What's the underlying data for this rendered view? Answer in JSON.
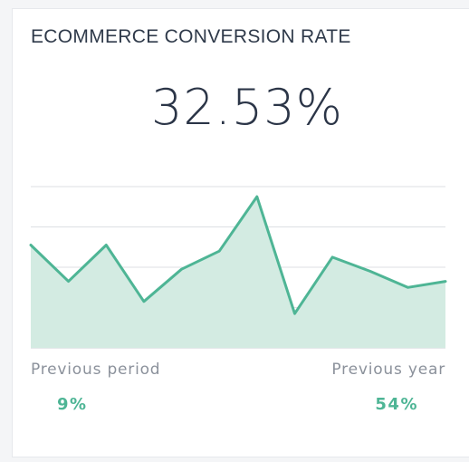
{
  "widget": {
    "title": "ECOMMERCE CONVERSION RATE",
    "value": "32.53%",
    "comparisons": [
      {
        "label": "Previous period",
        "value": "9%"
      },
      {
        "label": "Previous year",
        "value": "54%"
      }
    ]
  },
  "colors": {
    "accent": "#4eb595",
    "area_fill": "#d3ebe2",
    "gridline": "#dcdfe3",
    "title_text": "#2f3a4a",
    "muted_text": "#8b919b"
  },
  "chart_data": {
    "type": "area",
    "x": [
      1,
      2,
      3,
      4,
      5,
      6,
      7,
      8,
      9,
      10,
      11,
      12
    ],
    "series": [
      {
        "values": [
          25.5,
          16.5,
          25.5,
          11.5,
          19.5,
          24,
          37.5,
          8.5,
          22.5,
          19,
          15,
          16.5
        ]
      }
    ],
    "ylim": [
      0,
      40
    ],
    "grid": true,
    "axes_visible": false
  }
}
